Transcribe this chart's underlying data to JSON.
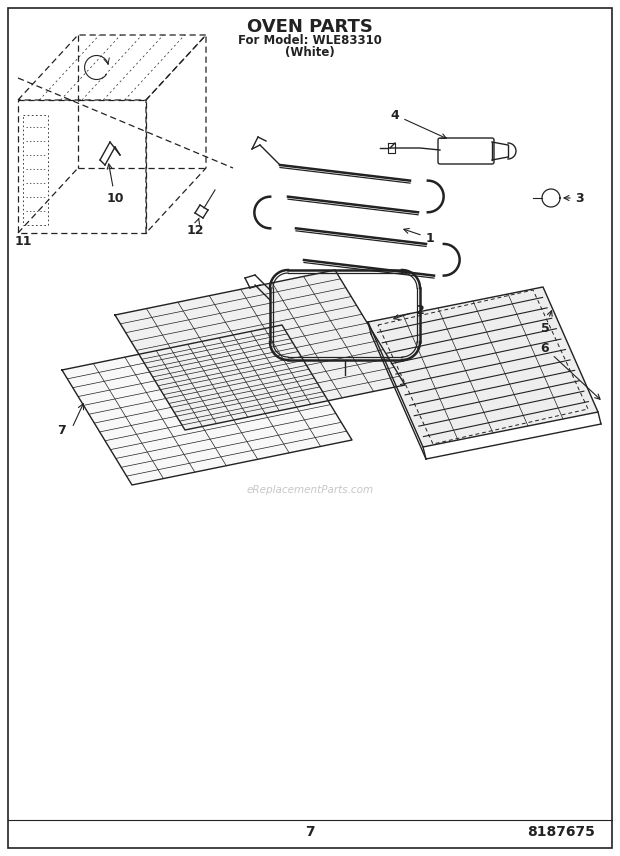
{
  "title": "OVEN PARTS",
  "subtitle1": "For Model: WLE83310",
  "subtitle2": "(White)",
  "page_number": "7",
  "part_number": "8187675",
  "bg_color": "#ffffff",
  "line_color": "#222222",
  "watermark": "eReplacementParts.com"
}
